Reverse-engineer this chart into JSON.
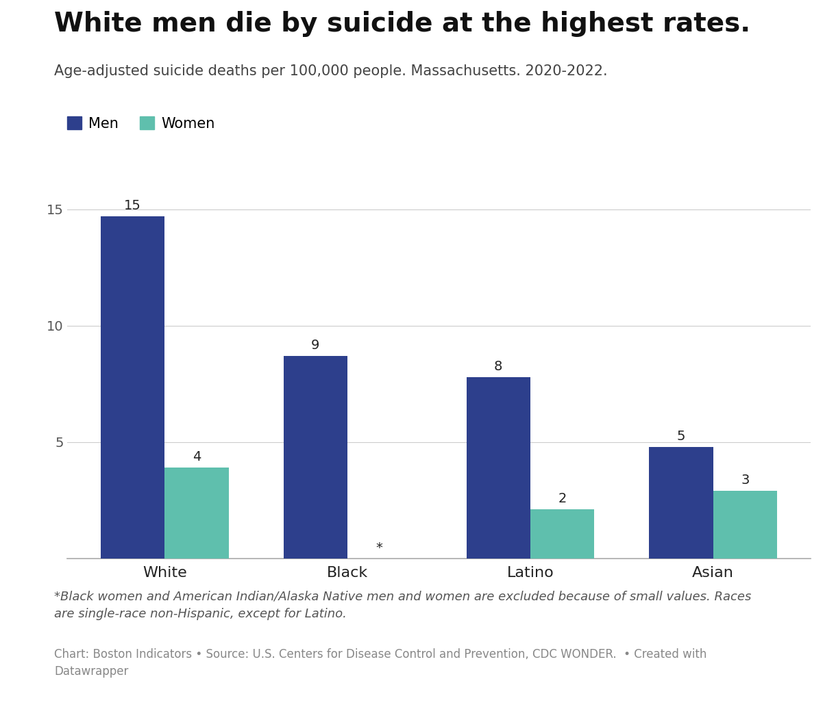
{
  "title": "White men die by suicide at the highest rates.",
  "subtitle": "Age-adjusted suicide deaths per 100,000 people. Massachusetts. 2020-2022.",
  "categories": [
    "White",
    "Black",
    "Latino",
    "Asian"
  ],
  "men_values": [
    14.7,
    8.7,
    7.8,
    4.8
  ],
  "men_labels": [
    "15",
    "9",
    "8",
    "5"
  ],
  "women_values": [
    3.9,
    null,
    2.1,
    2.9
  ],
  "women_labels": [
    "4",
    null,
    "2",
    "3"
  ],
  "women_star": [
    false,
    true,
    false,
    false
  ],
  "men_color": "#2d3f8c",
  "women_color": "#5fbfad",
  "ylim": [
    0,
    16
  ],
  "yticks": [
    5,
    10,
    15
  ],
  "bar_width": 0.35,
  "legend_labels": [
    "Men",
    "Women"
  ],
  "footnote": "*Black women and American Indian/Alaska Native men and women are excluded because of small values. Races\nare single-race non-Hispanic, except for Latino.",
  "source": "Chart: Boston Indicators • Source: U.S. Centers for Disease Control and Prevention, CDC WONDER.  • Created with\nDatawrapper",
  "title_fontsize": 28,
  "subtitle_fontsize": 15,
  "label_fontsize": 14,
  "tick_fontsize": 14,
  "footnote_fontsize": 13,
  "source_fontsize": 12
}
